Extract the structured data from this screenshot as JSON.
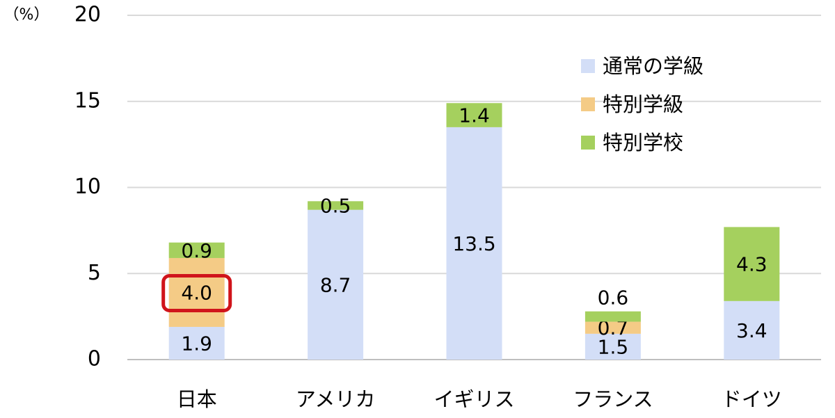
{
  "chart_data": {
    "type": "stacked_bar",
    "y_unit_label": "（%）",
    "categories": [
      "日本",
      "アメリカ",
      "イギリス",
      "フランス",
      "ドイツ"
    ],
    "series": [
      {
        "name": "通常の学級",
        "color": "#d3def7",
        "values": [
          1.9,
          8.7,
          13.5,
          1.5,
          3.4
        ]
      },
      {
        "name": "特別学級",
        "color": "#f4cb86",
        "values": [
          4.0,
          null,
          null,
          0.7,
          null
        ],
        "value_labels": [
          "4.0",
          null,
          null,
          "0.7",
          null
        ]
      },
      {
        "name": "特別学校",
        "color": "#a5d05e",
        "values": [
          0.9,
          0.5,
          1.4,
          0.6,
          4.3
        ]
      }
    ],
    "ylim": [
      0,
      20
    ],
    "yticks": [
      0,
      5,
      10,
      15,
      20
    ],
    "grid": true,
    "legend": "upper-right"
  }
}
